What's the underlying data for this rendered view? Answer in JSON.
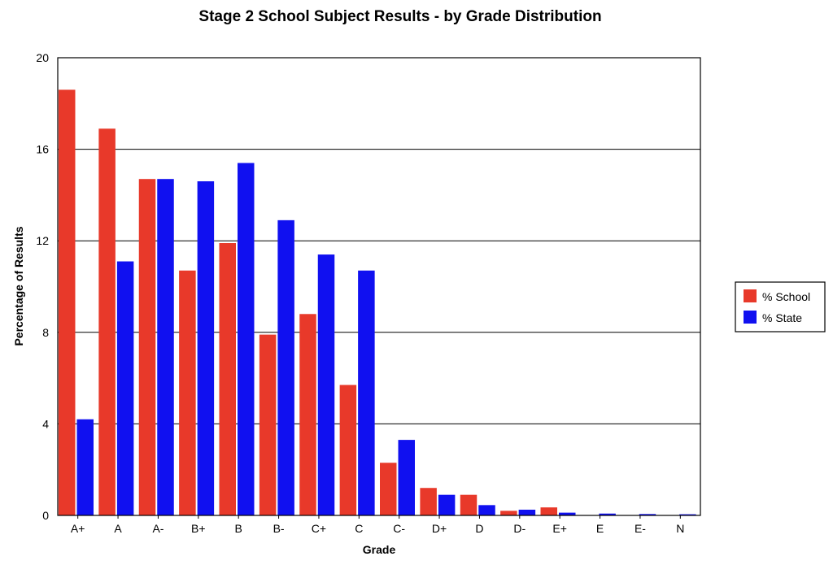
{
  "chart_data": {
    "type": "bar",
    "title": "Stage 2 School Subject Results - by Grade Distribution",
    "xlabel": "Grade",
    "ylabel": "Percentage of Results",
    "ylim": [
      0,
      20
    ],
    "yticks": [
      "0",
      "4",
      "8",
      "12",
      "16",
      "20"
    ],
    "grid": true,
    "legend_position": "right",
    "categories": [
      "A+",
      "A",
      "A-",
      "B+",
      "B",
      "B-",
      "C+",
      "C",
      "C-",
      "D+",
      "D",
      "D-",
      "E+",
      "E",
      "E-",
      "N"
    ],
    "series": [
      {
        "name": "% School",
        "color": "#e8392a",
        "values": [
          18.6,
          16.9,
          14.7,
          10.7,
          11.9,
          7.9,
          8.8,
          5.7,
          2.3,
          1.2,
          0.9,
          0.2,
          0.35,
          0,
          0,
          0
        ]
      },
      {
        "name": "% State",
        "color": "#1010f0",
        "values": [
          4.2,
          11.1,
          14.7,
          14.6,
          15.4,
          12.9,
          11.4,
          10.7,
          3.3,
          0.9,
          0.45,
          0.25,
          0.12,
          0.08,
          0.06,
          0.05
        ]
      }
    ]
  }
}
